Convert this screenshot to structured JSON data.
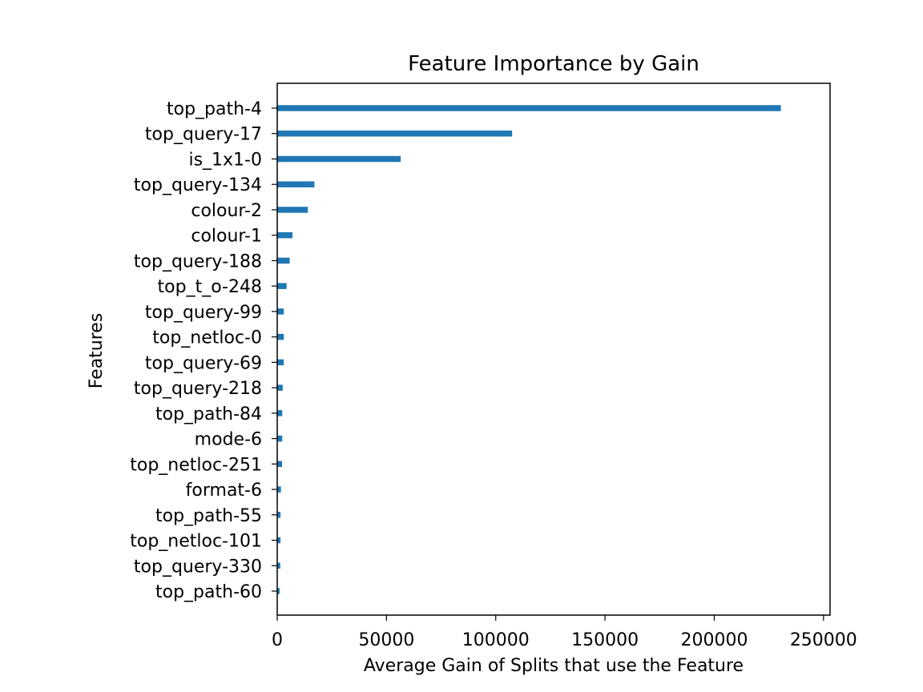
{
  "chart_data": {
    "type": "bar",
    "orientation": "horizontal",
    "title": "Feature Importance by Gain",
    "xlabel": "Average Gain of Splits that use the Feature",
    "ylabel": "Features",
    "xlim": [
      0,
      253000
    ],
    "xticks": [
      0,
      50000,
      100000,
      150000,
      200000,
      250000
    ],
    "xtick_labels": [
      "0",
      "50000",
      "100000",
      "150000",
      "200000",
      "250000"
    ],
    "grid": false,
    "bar_color": "#1f77b4",
    "categories": [
      "top_path-4",
      "top_query-17",
      "is_1x1-0",
      "top_query-134",
      "colour-2",
      "colour-1",
      "top_query-188",
      "top_t_o-248",
      "top_query-99",
      "top_netloc-0",
      "top_query-69",
      "top_query-218",
      "top_path-84",
      "mode-6",
      "top_netloc-251",
      "format-6",
      "top_path-55",
      "top_netloc-101",
      "top_query-330",
      "top_path-60"
    ],
    "values": [
      230500,
      107500,
      56500,
      17000,
      14000,
      7000,
      5700,
      4300,
      3000,
      3000,
      3000,
      2500,
      2300,
      2300,
      2200,
      1700,
      1500,
      1500,
      1400,
      1100
    ]
  }
}
